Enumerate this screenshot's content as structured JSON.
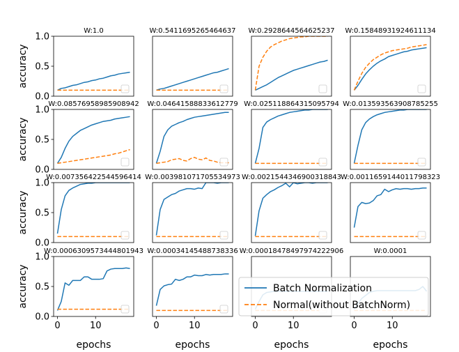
{
  "chart_data": {
    "type": "line",
    "figure": {
      "ylabel": "accuracy",
      "xlabel": "epochs",
      "ylim": [
        0,
        1.0
      ],
      "xlim": [
        -1,
        20
      ],
      "yticks": [
        0.0,
        0.5,
        1.0
      ],
      "ytick_labels": [
        "0.0",
        "0.5",
        "1.0"
      ],
      "xticks": [
        0,
        10
      ],
      "xtick_labels": [
        "0",
        "10"
      ],
      "epochs": [
        0,
        1,
        2,
        3,
        4,
        5,
        6,
        7,
        8,
        9,
        10,
        11,
        12,
        13,
        14,
        15,
        16,
        17,
        18,
        19
      ],
      "legend": {
        "placement": "lower-right of last row panels",
        "entries": [
          {
            "label": "Batch Normalization",
            "color": "#1f77b4",
            "style": "solid"
          },
          {
            "label": "Normal(without BatchNorm)",
            "color": "#ff7f0e",
            "style": "dashed"
          }
        ]
      }
    },
    "panels": [
      {
        "title": "W:1.0",
        "bn": [
          0.1,
          0.13,
          0.14,
          0.16,
          0.18,
          0.19,
          0.21,
          0.23,
          0.24,
          0.26,
          0.27,
          0.29,
          0.3,
          0.32,
          0.34,
          0.35,
          0.37,
          0.38,
          0.39,
          0.4
        ],
        "normal": [
          0.1,
          0.1,
          0.1,
          0.1,
          0.1,
          0.1,
          0.1,
          0.1,
          0.1,
          0.1,
          0.1,
          0.1,
          0.1,
          0.1,
          0.1,
          0.1,
          0.1,
          0.1,
          0.1,
          0.1
        ]
      },
      {
        "title": "W:0.5411695265464637",
        "bn": [
          0.1,
          0.12,
          0.13,
          0.15,
          0.17,
          0.19,
          0.21,
          0.23,
          0.25,
          0.27,
          0.29,
          0.31,
          0.33,
          0.35,
          0.37,
          0.39,
          0.4,
          0.42,
          0.44,
          0.46
        ],
        "normal": [
          0.1,
          0.1,
          0.1,
          0.1,
          0.1,
          0.1,
          0.1,
          0.1,
          0.1,
          0.1,
          0.1,
          0.1,
          0.1,
          0.1,
          0.1,
          0.1,
          0.1,
          0.1,
          0.1,
          0.1
        ]
      },
      {
        "title": "W:0.2928644564625237",
        "bn": [
          0.1,
          0.13,
          0.16,
          0.19,
          0.23,
          0.27,
          0.31,
          0.34,
          0.37,
          0.4,
          0.43,
          0.45,
          0.47,
          0.49,
          0.51,
          0.53,
          0.55,
          0.57,
          0.58,
          0.6
        ],
        "normal": [
          0.1,
          0.5,
          0.65,
          0.75,
          0.82,
          0.86,
          0.89,
          0.92,
          0.94,
          0.96,
          0.97,
          0.98,
          0.99,
          0.99,
          1.0,
          1.0,
          1.0,
          1.0,
          1.0,
          1.0
        ]
      },
      {
        "title": "W:0.15848931924611134",
        "bn": [
          0.1,
          0.18,
          0.28,
          0.37,
          0.44,
          0.5,
          0.55,
          0.59,
          0.62,
          0.66,
          0.68,
          0.7,
          0.72,
          0.74,
          0.75,
          0.77,
          0.78,
          0.79,
          0.8,
          0.81
        ],
        "normal": [
          0.1,
          0.25,
          0.38,
          0.48,
          0.55,
          0.61,
          0.65,
          0.69,
          0.72,
          0.74,
          0.76,
          0.77,
          0.78,
          0.79,
          0.8,
          0.82,
          0.83,
          0.84,
          0.85,
          0.86
        ]
      },
      {
        "title": "W:0.08576958985908942",
        "bn": [
          0.1,
          0.2,
          0.35,
          0.47,
          0.55,
          0.6,
          0.65,
          0.68,
          0.71,
          0.74,
          0.76,
          0.78,
          0.8,
          0.81,
          0.82,
          0.84,
          0.85,
          0.86,
          0.87,
          0.88
        ],
        "normal": [
          0.1,
          0.11,
          0.12,
          0.13,
          0.14,
          0.15,
          0.16,
          0.17,
          0.18,
          0.19,
          0.2,
          0.21,
          0.22,
          0.23,
          0.24,
          0.26,
          0.27,
          0.29,
          0.31,
          0.33
        ]
      },
      {
        "title": "W:0.04641588833612779",
        "bn": [
          0.1,
          0.3,
          0.55,
          0.66,
          0.72,
          0.75,
          0.78,
          0.8,
          0.83,
          0.85,
          0.87,
          0.88,
          0.89,
          0.9,
          0.91,
          0.92,
          0.93,
          0.94,
          0.95,
          0.95
        ],
        "normal": [
          0.1,
          0.11,
          0.12,
          0.13,
          0.16,
          0.17,
          0.18,
          0.15,
          0.14,
          0.18,
          0.2,
          0.17,
          0.16,
          0.19,
          0.15,
          0.14,
          0.12,
          0.11,
          0.11,
          0.11
        ]
      },
      {
        "title": "W:0.025118864315095794",
        "bn": [
          0.1,
          0.35,
          0.7,
          0.79,
          0.83,
          0.86,
          0.89,
          0.91,
          0.93,
          0.95,
          0.96,
          0.97,
          0.98,
          0.99,
          0.99,
          1.0,
          1.0,
          1.0,
          1.0,
          1.0
        ],
        "normal": [
          0.1,
          0.1,
          0.1,
          0.1,
          0.1,
          0.1,
          0.1,
          0.1,
          0.1,
          0.1,
          0.1,
          0.1,
          0.1,
          0.1,
          0.1,
          0.1,
          0.1,
          0.1,
          0.1,
          0.1
        ]
      },
      {
        "title": "W:0.013593563908785255",
        "bn": [
          0.1,
          0.4,
          0.66,
          0.78,
          0.84,
          0.88,
          0.91,
          0.93,
          0.95,
          0.96,
          0.97,
          0.98,
          0.99,
          0.99,
          1.0,
          1.0,
          1.0,
          1.0,
          1.0,
          1.0
        ],
        "normal": [
          0.1,
          0.1,
          0.1,
          0.1,
          0.1,
          0.1,
          0.1,
          0.1,
          0.1,
          0.1,
          0.1,
          0.1,
          0.1,
          0.1,
          0.1,
          0.1,
          0.1,
          0.1,
          0.1,
          0.1
        ]
      },
      {
        "title": "W:0.007356422544596414",
        "bn": [
          0.15,
          0.55,
          0.78,
          0.87,
          0.91,
          0.94,
          0.97,
          0.98,
          0.99,
          0.99,
          1.0,
          1.0,
          1.0,
          1.0,
          1.0,
          1.0,
          1.0,
          1.0,
          1.0,
          1.0
        ],
        "normal": [
          0.1,
          0.1,
          0.1,
          0.1,
          0.1,
          0.1,
          0.1,
          0.1,
          0.1,
          0.1,
          0.1,
          0.1,
          0.1,
          0.1,
          0.1,
          0.1,
          0.1,
          0.1,
          0.1,
          0.1
        ]
      },
      {
        "title": "W:0.003981071705534973",
        "bn": [
          0.12,
          0.55,
          0.72,
          0.76,
          0.8,
          0.82,
          0.86,
          0.88,
          0.9,
          0.9,
          0.89,
          0.91,
          0.9,
          1.0,
          1.0,
          1.0,
          0.99,
          1.0,
          1.0,
          1.0
        ],
        "normal": [
          0.1,
          0.1,
          0.1,
          0.1,
          0.1,
          0.1,
          0.1,
          0.1,
          0.1,
          0.1,
          0.1,
          0.1,
          0.1,
          0.1,
          0.1,
          0.1,
          0.1,
          0.1,
          0.1,
          0.1
        ]
      },
      {
        "title": "W:0.0021544346900318843",
        "bn": [
          0.11,
          0.53,
          0.74,
          0.8,
          0.85,
          0.88,
          0.92,
          0.95,
          0.99,
          0.93,
          1.0,
          0.98,
          0.99,
          1.0,
          1.0,
          0.99,
          1.0,
          1.0,
          1.0,
          1.0
        ],
        "normal": [
          0.1,
          0.1,
          0.1,
          0.1,
          0.1,
          0.1,
          0.1,
          0.1,
          0.1,
          0.1,
          0.1,
          0.1,
          0.1,
          0.1,
          0.1,
          0.1,
          0.1,
          0.1,
          0.1,
          0.1
        ]
      },
      {
        "title": "W:0.0011659144011798323",
        "bn": [
          0.25,
          0.6,
          0.67,
          0.65,
          0.66,
          0.7,
          0.78,
          0.8,
          0.89,
          0.85,
          0.88,
          0.9,
          0.89,
          0.9,
          0.9,
          0.89,
          0.9,
          0.9,
          0.91,
          0.91
        ],
        "normal": [
          0.1,
          0.1,
          0.1,
          0.1,
          0.1,
          0.1,
          0.1,
          0.1,
          0.1,
          0.1,
          0.1,
          0.1,
          0.1,
          0.1,
          0.1,
          0.1,
          0.1,
          0.1,
          0.1,
          0.1
        ]
      },
      {
        "title": "W:0.0006309573444801943",
        "bn": [
          0.1,
          0.25,
          0.56,
          0.52,
          0.6,
          0.6,
          0.6,
          0.66,
          0.66,
          0.62,
          0.62,
          0.62,
          0.63,
          0.76,
          0.79,
          0.8,
          0.8,
          0.8,
          0.81,
          0.8
        ],
        "normal": [
          0.12,
          0.12,
          0.12,
          0.12,
          0.12,
          0.12,
          0.12,
          0.12,
          0.12,
          0.12,
          0.12,
          0.12,
          0.12,
          0.12,
          0.12,
          0.12,
          0.12,
          0.12,
          0.12,
          0.12
        ]
      },
      {
        "title": "W:0.00034145488738336",
        "bn": [
          0.18,
          0.45,
          0.51,
          0.53,
          0.54,
          0.62,
          0.6,
          0.62,
          0.66,
          0.66,
          0.69,
          0.68,
          0.68,
          0.7,
          0.69,
          0.7,
          0.7,
          0.7,
          0.71,
          0.71
        ],
        "normal": [
          0.1,
          0.1,
          0.1,
          0.1,
          0.1,
          0.1,
          0.1,
          0.1,
          0.1,
          0.1,
          0.1,
          0.1,
          0.1,
          0.1,
          0.1,
          0.1,
          0.1,
          0.1,
          0.1,
          0.1
        ]
      },
      {
        "title": "W:0.00018478497974222906",
        "bn": [
          0.12,
          0.25,
          0.36,
          0.4,
          0.41,
          0.42,
          0.42,
          0.42,
          0.42,
          0.42,
          0.42,
          0.42,
          0.42,
          0.42,
          0.42,
          0.42,
          0.42,
          0.42,
          0.42,
          0.42
        ],
        "normal": [
          0.1,
          0.1,
          0.1,
          0.1,
          0.1,
          0.1,
          0.1,
          0.1,
          0.1,
          0.1,
          0.1,
          0.1,
          0.1,
          0.1,
          0.1,
          0.1,
          0.1,
          0.1,
          0.1,
          0.1
        ]
      },
      {
        "title": "W:0.0001",
        "bn": [
          0.12,
          0.22,
          0.3,
          0.35,
          0.4,
          0.42,
          0.43,
          0.43,
          0.43,
          0.43,
          0.43,
          0.43,
          0.43,
          0.43,
          0.43,
          0.43,
          0.43,
          0.45,
          0.5,
          0.42
        ],
        "normal": [
          0.1,
          0.1,
          0.1,
          0.1,
          0.1,
          0.1,
          0.1,
          0.1,
          0.1,
          0.1,
          0.1,
          0.1,
          0.1,
          0.1,
          0.1,
          0.1,
          0.1,
          0.1,
          0.1,
          0.1
        ]
      }
    ]
  }
}
